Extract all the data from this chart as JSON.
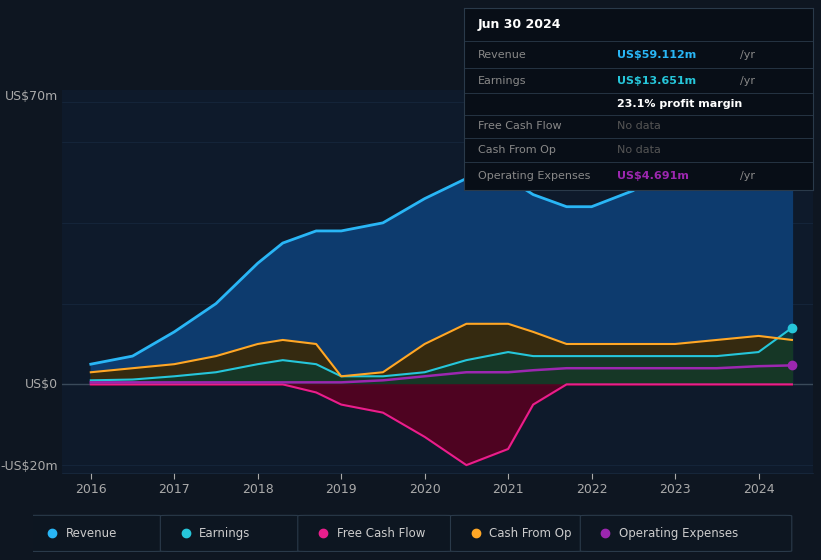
{
  "bg_color": "#0e1621",
  "chart_bg": "#0e1a2b",
  "grid_color": "#1a2d45",
  "text_color": "#aaaaaa",
  "title_color": "#ffffff",
  "ylabel_us0": "US$0",
  "ylabel_us70": "US$70m",
  "ylabel_usneg20": "-US$20m",
  "x_labels": [
    "2016",
    "2017",
    "2018",
    "2019",
    "2020",
    "2021",
    "2022",
    "2023",
    "2024"
  ],
  "years": [
    2016.0,
    2016.5,
    2017.0,
    2017.5,
    2018.0,
    2018.3,
    2018.7,
    2019.0,
    2019.5,
    2020.0,
    2020.5,
    2021.0,
    2021.3,
    2021.7,
    2022.0,
    2022.5,
    2023.0,
    2023.5,
    2024.0,
    2024.4
  ],
  "revenue": [
    5,
    7,
    13,
    20,
    30,
    35,
    38,
    38,
    40,
    46,
    51,
    51,
    47,
    44,
    44,
    48,
    58,
    65,
    62,
    59
  ],
  "earnings": [
    1,
    1.2,
    2,
    3,
    5,
    6,
    5,
    2,
    2,
    3,
    6,
    8,
    7,
    7,
    7,
    7,
    7,
    7,
    8,
    14
  ],
  "free_cash_flow": [
    0,
    0,
    0,
    0,
    0,
    0,
    -2,
    -5,
    -7,
    -13,
    -20,
    -16,
    -5,
    0,
    0,
    0,
    0,
    0,
    0,
    0
  ],
  "cash_from_op": [
    3,
    4,
    5,
    7,
    10,
    11,
    10,
    2,
    3,
    10,
    15,
    15,
    13,
    10,
    10,
    10,
    10,
    11,
    12,
    11
  ],
  "operating_expenses": [
    0.5,
    0.5,
    0.5,
    0.5,
    0.5,
    0.5,
    0.5,
    0.5,
    1,
    2,
    3,
    3,
    3.5,
    4,
    4,
    4,
    4,
    4,
    4.5,
    4.7
  ],
  "revenue_color": "#29b6f6",
  "earnings_color": "#26c6da",
  "free_cash_flow_color": "#e91e8c",
  "cash_from_op_color": "#ffa726",
  "operating_expenses_color": "#9c27b0",
  "revenue_fill": "#0d3b6e",
  "earnings_fill": "#0a3d30",
  "free_cash_flow_fill": "#5a0020",
  "cash_from_op_fill": "#3d2800",
  "info_box": {
    "date": "Jun 30 2024",
    "revenue_label": "Revenue",
    "revenue_value": "US$59.112m",
    "revenue_unit": "/yr",
    "earnings_label": "Earnings",
    "earnings_value": "US$13.651m",
    "earnings_unit": "/yr",
    "profit_margin": "23.1% profit margin",
    "free_cash_flow_label": "Free Cash Flow",
    "free_cash_flow_value": "No data",
    "cash_from_op_label": "Cash From Op",
    "cash_from_op_value": "No data",
    "op_expenses_label": "Operating Expenses",
    "op_expenses_value": "US$4.691m",
    "op_expenses_unit": "/yr"
  },
  "legend_items": [
    {
      "label": "Revenue",
      "color": "#29b6f6"
    },
    {
      "label": "Earnings",
      "color": "#26c6da"
    },
    {
      "label": "Free Cash Flow",
      "color": "#e91e8c"
    },
    {
      "label": "Cash From Op",
      "color": "#ffa726"
    },
    {
      "label": "Operating Expenses",
      "color": "#9c27b0"
    }
  ]
}
